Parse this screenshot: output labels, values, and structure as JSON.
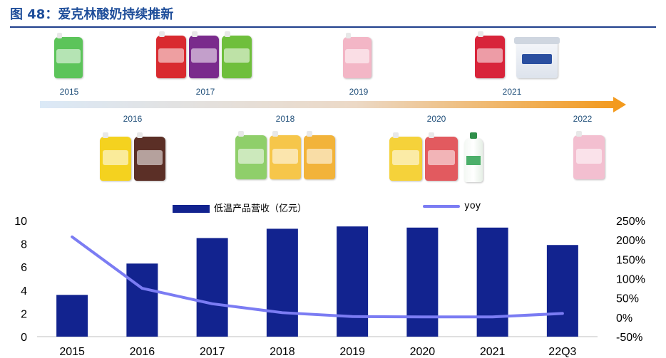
{
  "figure": {
    "title": "图 48：爱克林酸奶持续推新"
  },
  "timeline": {
    "years_top": [
      "2015",
      "2017",
      "2019",
      "2021"
    ],
    "years_bottom": [
      "2016",
      "2018",
      "2020",
      "2022"
    ],
    "arrow_color": "#f39a1e",
    "arrow_start_color": "#dbe9f7"
  },
  "legend": {
    "bar_label": "低温产品营收（亿元）",
    "line_label": "yoy"
  },
  "colors": {
    "bar": "#12238f",
    "line": "#7b7cf3",
    "title": "#1f4e9a"
  },
  "chart_data": {
    "type": "bar",
    "categories": [
      "2015",
      "2016",
      "2017",
      "2018",
      "2019",
      "2020",
      "2021",
      "22Q3"
    ],
    "series": [
      {
        "name": "低温产品营收（亿元）",
        "type": "bar",
        "axis": "left",
        "values": [
          3.6,
          6.3,
          8.5,
          9.3,
          9.5,
          9.4,
          9.4,
          7.9
        ]
      },
      {
        "name": "yoy",
        "type": "line",
        "axis": "right",
        "values": [
          208,
          75,
          35,
          12,
          2,
          1,
          1,
          10
        ]
      }
    ],
    "y_left": {
      "ylim": [
        0,
        10
      ],
      "ticks": [
        "0",
        "2",
        "4",
        "6",
        "8",
        "10"
      ],
      "tick_values": [
        0,
        2,
        4,
        6,
        8,
        10
      ]
    },
    "y_right": {
      "ylim": [
        -50,
        250
      ],
      "ticks": [
        "-50%",
        "0%",
        "50%",
        "100%",
        "150%",
        "200%",
        "250%"
      ],
      "tick_values": [
        -50,
        0,
        50,
        100,
        150,
        200,
        250
      ]
    },
    "grid": false,
    "legend_position": "top-center"
  }
}
